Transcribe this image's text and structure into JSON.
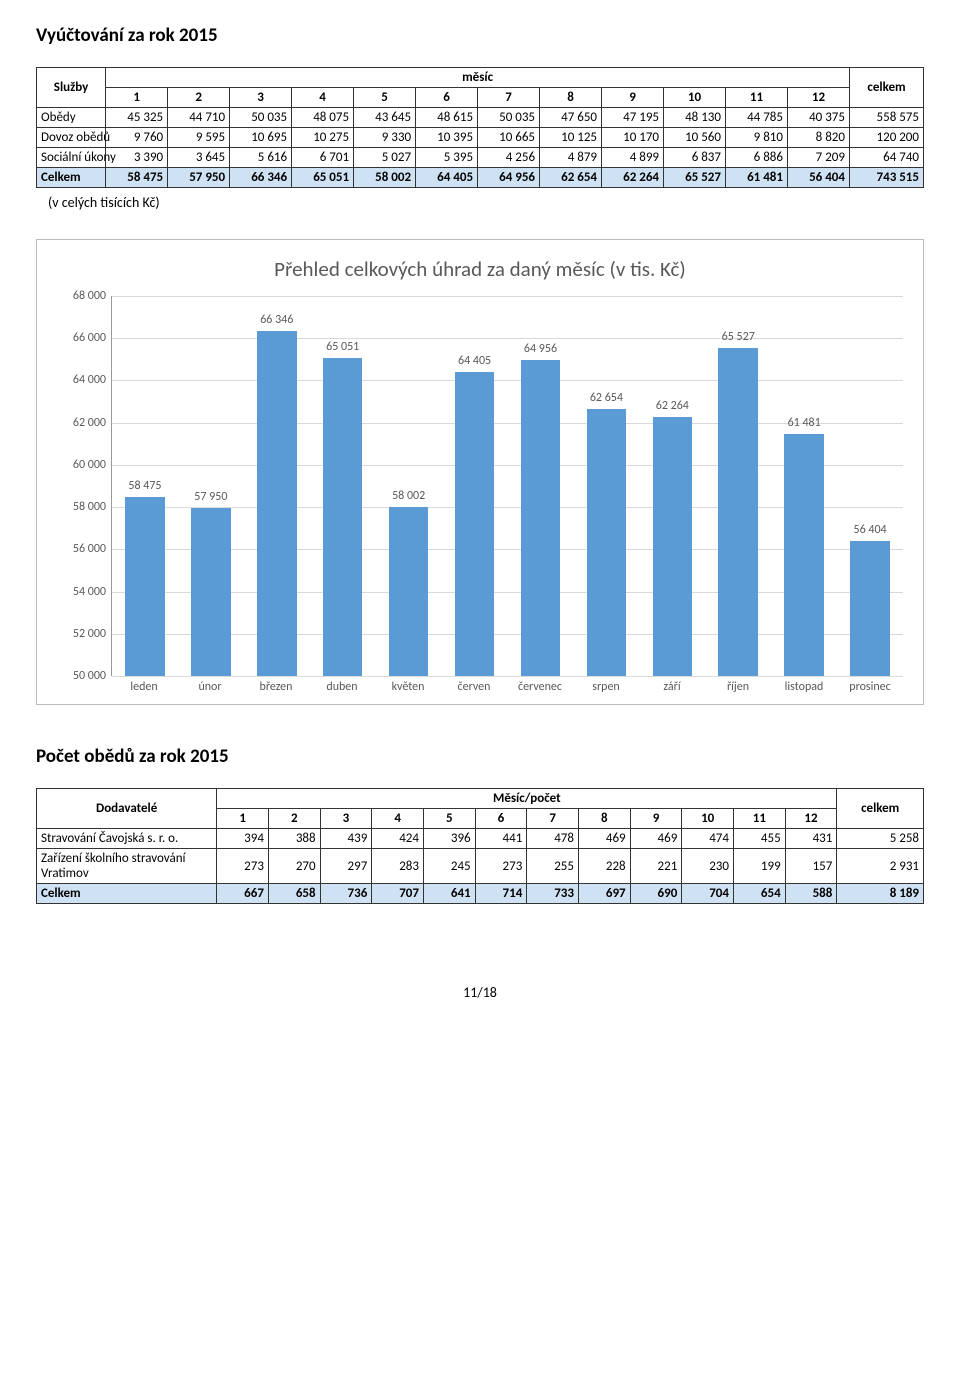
{
  "section1": {
    "title": "Vyúčtování za rok 2015",
    "header_service": "Služby",
    "header_month": "měsíc",
    "header_total": "celkem",
    "months": [
      "1",
      "2",
      "3",
      "4",
      "5",
      "6",
      "7",
      "8",
      "9",
      "10",
      "11",
      "12"
    ],
    "rows": [
      {
        "label": "Obědy",
        "vals": [
          "45 325",
          "44 710",
          "50 035",
          "48 075",
          "43 645",
          "48 615",
          "50 035",
          "47 650",
          "47 195",
          "48 130",
          "44 785",
          "40 375"
        ],
        "total": "558 575"
      },
      {
        "label": "Dovoz obědů",
        "vals": [
          "9 760",
          "9 595",
          "10 695",
          "10 275",
          "9 330",
          "10 395",
          "10 665",
          "10 125",
          "10 170",
          "10 560",
          "9 810",
          "8 820"
        ],
        "total": "120 200"
      },
      {
        "label": "Sociální úkony",
        "vals": [
          "3 390",
          "3 645",
          "5 616",
          "6 701",
          "5 027",
          "5 395",
          "4 256",
          "4 879",
          "4 899",
          "6 837",
          "6 886",
          "7 209"
        ],
        "total": "64 740"
      }
    ],
    "total_row": {
      "label": "Celkem",
      "vals": [
        "58 475",
        "57 950",
        "66 346",
        "65 051",
        "58 002",
        "64 405",
        "64 956",
        "62 654",
        "62 264",
        "65 527",
        "61 481",
        "56 404"
      ],
      "total": "743 515"
    },
    "note": "(v celých tisících Kč)"
  },
  "chart": {
    "type": "bar",
    "title": "Přehled celkových úhrad za daný měsíc (v tis. Kč)",
    "categories": [
      "leden",
      "únor",
      "březen",
      "duben",
      "květen",
      "červen",
      "červenec",
      "srpen",
      "září",
      "říjen",
      "listopad",
      "prosinec"
    ],
    "values": [
      58475,
      57950,
      66346,
      65051,
      58002,
      64405,
      64956,
      62654,
      62264,
      65527,
      61481,
      56404
    ],
    "value_labels": [
      "58 475",
      "57 950",
      "66 346",
      "65 051",
      "58 002",
      "64 405",
      "64 956",
      "62 654",
      "62 264",
      "65 527",
      "61 481",
      "56 404"
    ],
    "ylim": [
      50000,
      68000
    ],
    "yticks": [
      50000,
      52000,
      54000,
      56000,
      58000,
      60000,
      62000,
      64000,
      66000,
      68000
    ],
    "ytick_labels": [
      "50 000",
      "52 000",
      "54 000",
      "56 000",
      "58 000",
      "60 000",
      "62 000",
      "64 000",
      "66 000",
      "68 000"
    ],
    "bar_color": "#5b9bd5",
    "grid_color": "#d9d9d9",
    "axis_color": "#999999",
    "text_color": "#595959",
    "background_color": "#ffffff",
    "title_fontsize": 21,
    "label_fontsize": 12
  },
  "section2": {
    "title": "Počet obědů za rok 2015",
    "header_supplier": "Dodavatelé",
    "header_month": "Měsíc/počet",
    "header_total": "celkem",
    "months": [
      "1",
      "2",
      "3",
      "4",
      "5",
      "6",
      "7",
      "8",
      "9",
      "10",
      "11",
      "12"
    ],
    "rows": [
      {
        "label": "Stravování Čavojská s. r. o.",
        "vals": [
          "394",
          "388",
          "439",
          "424",
          "396",
          "441",
          "478",
          "469",
          "469",
          "474",
          "455",
          "431"
        ],
        "total": "5 258"
      },
      {
        "label": "Zařízení školního stravování Vratimov",
        "vals": [
          "273",
          "270",
          "297",
          "283",
          "245",
          "273",
          "255",
          "228",
          "221",
          "230",
          "199",
          "157"
        ],
        "total": "2 931"
      }
    ],
    "total_row": {
      "label": "Celkem",
      "vals": [
        "667",
        "658",
        "736",
        "707",
        "641",
        "714",
        "733",
        "697",
        "690",
        "704",
        "654",
        "588"
      ],
      "total": "8 189"
    }
  },
  "footer": "11/18"
}
